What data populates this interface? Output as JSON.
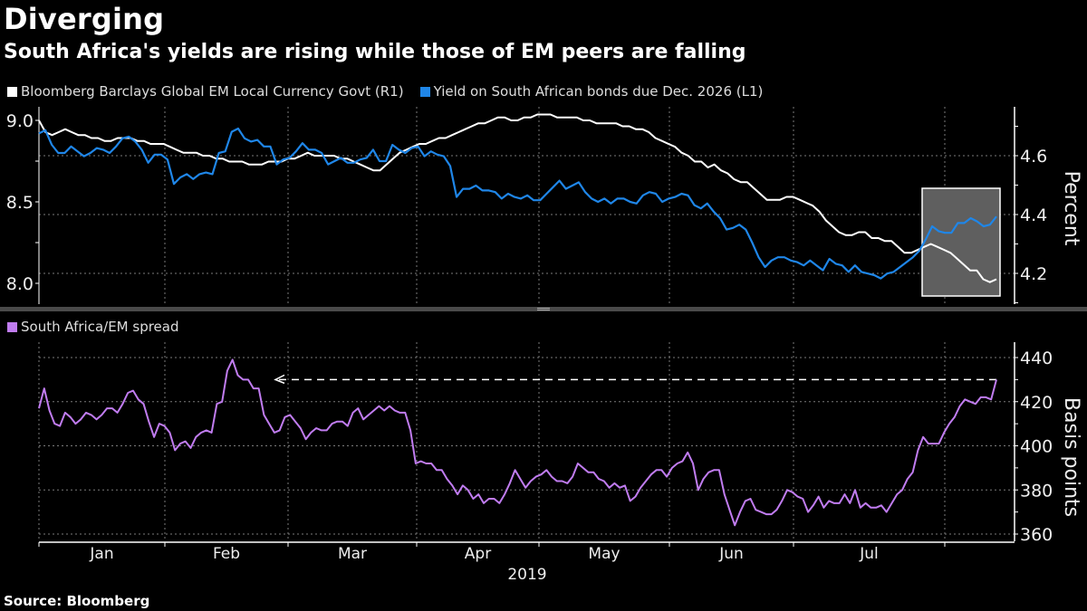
{
  "header": {
    "title": "Diverging",
    "subtitle": "South Africa's yields are rising while those of EM peers are falling"
  },
  "source": "Source: Bloomberg",
  "colors": {
    "em_index": "#ffffff",
    "sa_yield": "#1f86e8",
    "spread": "#c07cf0",
    "background": "#000000",
    "highlight_box": "#5f5f5f",
    "grid": "#7a7a7a",
    "separator": "#4a4a4a"
  },
  "chart_data": [
    {
      "type": "line",
      "title": "Diverging",
      "subtitle": "South Africa's yields are rising while those of EM peers are falling",
      "legend_position": "top-left",
      "x_axis": {
        "label": "2019",
        "tick_labels": [
          "Jan",
          "Feb",
          "Mar",
          "Apr",
          "May",
          "Jun",
          "Jul"
        ],
        "range": [
          "2019-01-01",
          "2019-08-05"
        ]
      },
      "left_axis": {
        "label": "",
        "ticks": [
          8.0,
          8.5,
          9.0
        ],
        "ylim": [
          7.93,
          9.07
        ]
      },
      "right_axis": {
        "label": "Percent",
        "ticks": [
          4.2,
          4.4,
          4.6
        ],
        "ylim": [
          4.12,
          4.76
        ]
      },
      "grid": true,
      "annotation": "highlight box over late July to early August",
      "series": [
        {
          "name": "Bloomberg Barclays Global EM Local Currency Govt (R1)",
          "axis": "right",
          "legend_label": "Bloomberg Barclays Global EM Local Currency Govt (R1)",
          "values": [
            4.72,
            4.68,
            4.67,
            4.68,
            4.69,
            4.68,
            4.67,
            4.67,
            4.66,
            4.66,
            4.65,
            4.65,
            4.66,
            4.66,
            4.66,
            4.65,
            4.65,
            4.64,
            4.64,
            4.64,
            4.63,
            4.62,
            4.61,
            4.61,
            4.61,
            4.6,
            4.6,
            4.59,
            4.59,
            4.58,
            4.58,
            4.58,
            4.57,
            4.57,
            4.57,
            4.58,
            4.58,
            4.58,
            4.59,
            4.59,
            4.6,
            4.61,
            4.6,
            4.6,
            4.6,
            4.6,
            4.59,
            4.59,
            4.58,
            4.57,
            4.56,
            4.55,
            4.55,
            4.57,
            4.59,
            4.61,
            4.62,
            4.63,
            4.64,
            4.64,
            4.65,
            4.66,
            4.66,
            4.67,
            4.68,
            4.69,
            4.7,
            4.71,
            4.71,
            4.72,
            4.73,
            4.73,
            4.72,
            4.72,
            4.73,
            4.73,
            4.74,
            4.74,
            4.74,
            4.73,
            4.73,
            4.73,
            4.73,
            4.72,
            4.72,
            4.71,
            4.71,
            4.71,
            4.71,
            4.7,
            4.7,
            4.69,
            4.69,
            4.68,
            4.66,
            4.65,
            4.64,
            4.63,
            4.61,
            4.6,
            4.58,
            4.58,
            4.56,
            4.57,
            4.55,
            4.54,
            4.52,
            4.51,
            4.51,
            4.49,
            4.47,
            4.45,
            4.45,
            4.45,
            4.46,
            4.46,
            4.45,
            4.44,
            4.43,
            4.41,
            4.38,
            4.36,
            4.34,
            4.33,
            4.33,
            4.34,
            4.34,
            4.32,
            4.32,
            4.31,
            4.31,
            4.29,
            4.27,
            4.27,
            4.28,
            4.29,
            4.3,
            4.29,
            4.28,
            4.27,
            4.25,
            4.23,
            4.21,
            4.21,
            4.18,
            4.17,
            4.18
          ]
        },
        {
          "name": "Yield on South African bonds due Dec. 2026 (L1)",
          "axis": "left",
          "legend_label": "Yield on South African bonds due Dec. 2026 (L1)",
          "values": [
            8.92,
            8.94,
            8.85,
            8.8,
            8.8,
            8.84,
            8.81,
            8.78,
            8.8,
            8.83,
            8.82,
            8.8,
            8.84,
            8.89,
            8.9,
            8.87,
            8.82,
            8.74,
            8.79,
            8.79,
            8.76,
            8.61,
            8.65,
            8.67,
            8.64,
            8.67,
            8.68,
            8.67,
            8.8,
            8.81,
            8.93,
            8.95,
            8.89,
            8.87,
            8.88,
            8.84,
            8.84,
            8.73,
            8.76,
            8.77,
            8.81,
            8.86,
            8.82,
            8.82,
            8.8,
            8.73,
            8.75,
            8.77,
            8.74,
            8.74,
            8.76,
            8.77,
            8.82,
            8.75,
            8.75,
            8.85,
            8.82,
            8.8,
            8.83,
            8.84,
            8.78,
            8.81,
            8.79,
            8.78,
            8.72,
            8.53,
            8.58,
            8.58,
            8.6,
            8.57,
            8.57,
            8.56,
            8.52,
            8.55,
            8.53,
            8.52,
            8.54,
            8.51,
            8.51,
            8.55,
            8.59,
            8.63,
            8.58,
            8.6,
            8.62,
            8.56,
            8.52,
            8.5,
            8.52,
            8.49,
            8.52,
            8.52,
            8.5,
            8.49,
            8.54,
            8.56,
            8.55,
            8.5,
            8.52,
            8.53,
            8.55,
            8.54,
            8.48,
            8.46,
            8.49,
            8.44,
            8.4,
            8.33,
            8.34,
            8.36,
            8.33,
            8.25,
            8.16,
            8.1,
            8.14,
            8.16,
            8.16,
            8.14,
            8.13,
            8.11,
            8.14,
            8.11,
            8.08,
            8.15,
            8.12,
            8.11,
            8.07,
            8.11,
            8.07,
            8.06,
            8.05,
            8.03,
            8.06,
            8.07,
            8.1,
            8.13,
            8.16,
            8.2,
            8.27,
            8.35,
            8.32,
            8.31,
            8.31,
            8.37,
            8.37,
            8.4,
            8.38,
            8.35,
            8.36,
            8.41
          ]
        }
      ]
    },
    {
      "type": "line",
      "legend_position": "top-left",
      "x_axis": {
        "label": "2019",
        "tick_labels": [
          "Jan",
          "Feb",
          "Mar",
          "Apr",
          "May",
          "Jun",
          "Jul"
        ],
        "range": [
          "2019-01-01",
          "2019-08-05"
        ]
      },
      "right_axis": {
        "label": "Basis points",
        "ticks": [
          360,
          380,
          400,
          420,
          440
        ],
        "ylim": [
          358,
          446
        ]
      },
      "grid": true,
      "annotation": "dashed horizontal arrow at 430 bp pointing back to the February peak",
      "annotation_level": 430,
      "series": [
        {
          "name": "South Africa/EM spread",
          "axis": "right",
          "legend_label": "South Africa/EM spread",
          "values": [
            417,
            426,
            416,
            410,
            409,
            415,
            413,
            410,
            412,
            415,
            414,
            412,
            414,
            417,
            417,
            415,
            419,
            424,
            425,
            421,
            419,
            411,
            404,
            410,
            409,
            406,
            398,
            401,
            402,
            399,
            404,
            406,
            407,
            406,
            419,
            420,
            434,
            439,
            432,
            430,
            430,
            426,
            426,
            414,
            410,
            406,
            407,
            413,
            414,
            411,
            408,
            403,
            406,
            408,
            407,
            407,
            410,
            411,
            411,
            409,
            415,
            417,
            412,
            414,
            416,
            418,
            416,
            418,
            416,
            415,
            415,
            407,
            392,
            393,
            392,
            392,
            389,
            389,
            385,
            382,
            378,
            382,
            380,
            376,
            378,
            374,
            376,
            376,
            374,
            378,
            383,
            389,
            385,
            381,
            384,
            386,
            387,
            389,
            386,
            384,
            384,
            383,
            386,
            392,
            390,
            388,
            388,
            385,
            384,
            381,
            383,
            381,
            382,
            375,
            377,
            381,
            384,
            387,
            389,
            389,
            386,
            390,
            392,
            393,
            397,
            392,
            380,
            385,
            388,
            389,
            389,
            378,
            371,
            364,
            370,
            375,
            376,
            371,
            370,
            369,
            369,
            371,
            375,
            380,
            379,
            377,
            376,
            370,
            373,
            377,
            372,
            375,
            374,
            374,
            378,
            374,
            380,
            372,
            374,
            372,
            372,
            373,
            370,
            374,
            378,
            380,
            385,
            388,
            398,
            404,
            401,
            401,
            401,
            406,
            410,
            413,
            418,
            421,
            420,
            419,
            422,
            422,
            421,
            430
          ]
        }
      ]
    }
  ]
}
